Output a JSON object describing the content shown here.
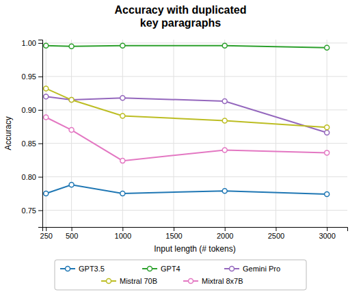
{
  "chart_data": {
    "type": "line",
    "title": "Accuracy with duplicated\nkey paragraphs",
    "x_label": "Input length (# tokens)",
    "y_label": "Accuracy",
    "x": [
      250,
      500,
      1000,
      2000,
      3000
    ],
    "series": [
      {
        "name": "GPT3.5",
        "color": "#1f77b4",
        "values": [
          0.775,
          0.788,
          0.775,
          0.779,
          0.774
        ]
      },
      {
        "name": "GPT4",
        "color": "#2ca02c",
        "values": [
          0.996,
          0.995,
          0.996,
          0.996,
          0.993
        ]
      },
      {
        "name": "Gemini Pro",
        "color": "#9467bd",
        "values": [
          0.92,
          0.915,
          0.918,
          0.913,
          0.866
        ]
      },
      {
        "name": "Mistral 70B",
        "color": "#bcbd22",
        "values": [
          0.932,
          0.915,
          0.891,
          0.884,
          0.874
        ]
      },
      {
        "name": "Mixtral 8x7B",
        "color": "#e377c2",
        "values": [
          0.889,
          0.87,
          0.824,
          0.84,
          0.836
        ]
      }
    ],
    "xlim": [
      215,
      3200
    ],
    "xticks": [
      250,
      500,
      1000,
      1500,
      2000,
      2500,
      3000
    ],
    "ylim": [
      0.725,
      1.005
    ],
    "yticks": [
      0.75,
      {
        "value": 0.8,
        "label": "0.80"
      },
      0.85,
      {
        "value": 0.9,
        "label": "0.90"
      },
      0.95,
      {
        "value": 1.0,
        "label": "1.00"
      }
    ],
    "marker": "circle",
    "grid": true,
    "legend": "bottom"
  }
}
